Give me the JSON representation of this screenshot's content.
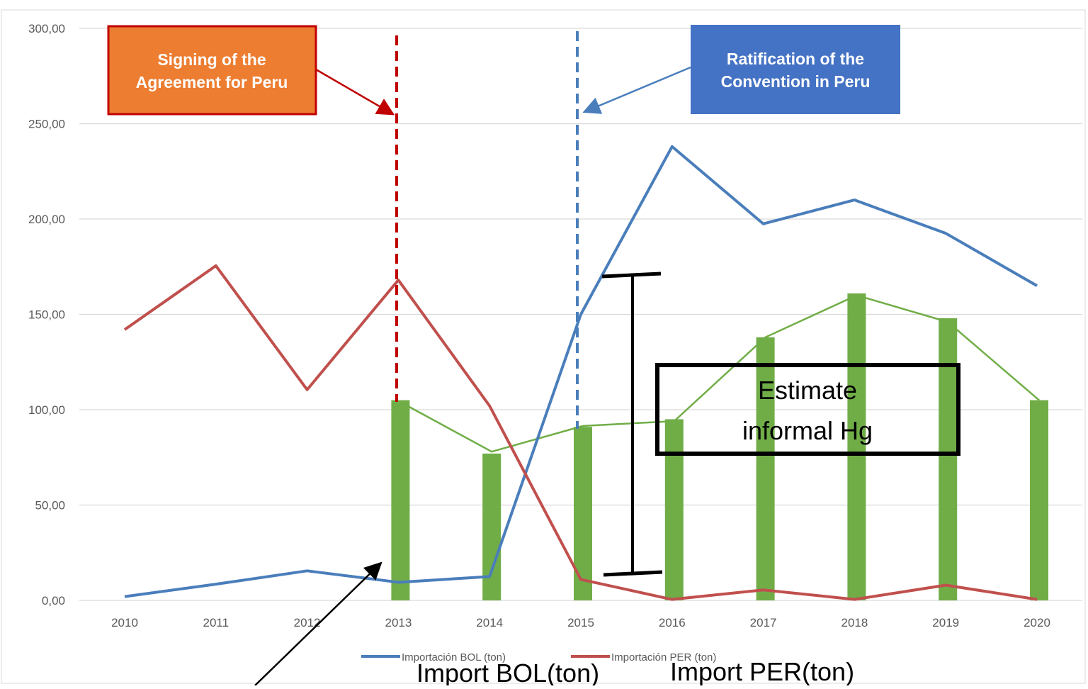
{
  "chart_data": {
    "type": "line",
    "categories": [
      "2010",
      "2011",
      "2012",
      "2013",
      "2014",
      "2015",
      "2016",
      "2017",
      "2018",
      "2019",
      "2020"
    ],
    "ylim": [
      0,
      300
    ],
    "yticks": [
      "0,00",
      "50,00",
      "100,00",
      "150,00",
      "200,00",
      "250,00",
      "300,00"
    ],
    "ytick_values": [
      0,
      50,
      100,
      150,
      200,
      250,
      300
    ],
    "grid": true,
    "series": [
      {
        "name": "Importación BOL (ton)",
        "color": "#4a7ebb",
        "values": [
          2,
          8.5,
          15.5,
          9.5,
          12.5,
          150,
          238,
          197.5,
          210,
          192.5,
          165
        ]
      },
      {
        "name": "Importación PER (ton)",
        "color": "#c0504d",
        "values": [
          142,
          175.5,
          110.5,
          168,
          102,
          11,
          0.5,
          5.5,
          0.5,
          8,
          0.5
        ]
      }
    ],
    "bars": {
      "color": "#70ad47",
      "categories": [
        "2013",
        "2014",
        "2015",
        "2016",
        "2017",
        "2018",
        "2019",
        "2020"
      ],
      "values": [
        105,
        77,
        91,
        95,
        138,
        161,
        148,
        105
      ],
      "line_values": [
        104,
        78,
        91.5,
        94,
        138,
        160,
        146,
        105
      ]
    },
    "legend_position": "bottom",
    "annotations": {
      "signing": {
        "text_lines": [
          "Signing of the",
          "Agreement for Peru"
        ],
        "year": "2013",
        "bg": "#ed7d31",
        "border": "#c00000",
        "line_color": "#c00000"
      },
      "ratification": {
        "text_lines": [
          "Ratification of the",
          "Convention in Peru"
        ],
        "year": "2015",
        "bg": "#4472c4",
        "line_color": "#4a7ebb"
      },
      "estimate": {
        "text_lines": [
          "Estimate",
          "informal Hg"
        ]
      },
      "import_bol": "Import BOL(ton)",
      "import_per": "Import PER(ton)"
    }
  }
}
